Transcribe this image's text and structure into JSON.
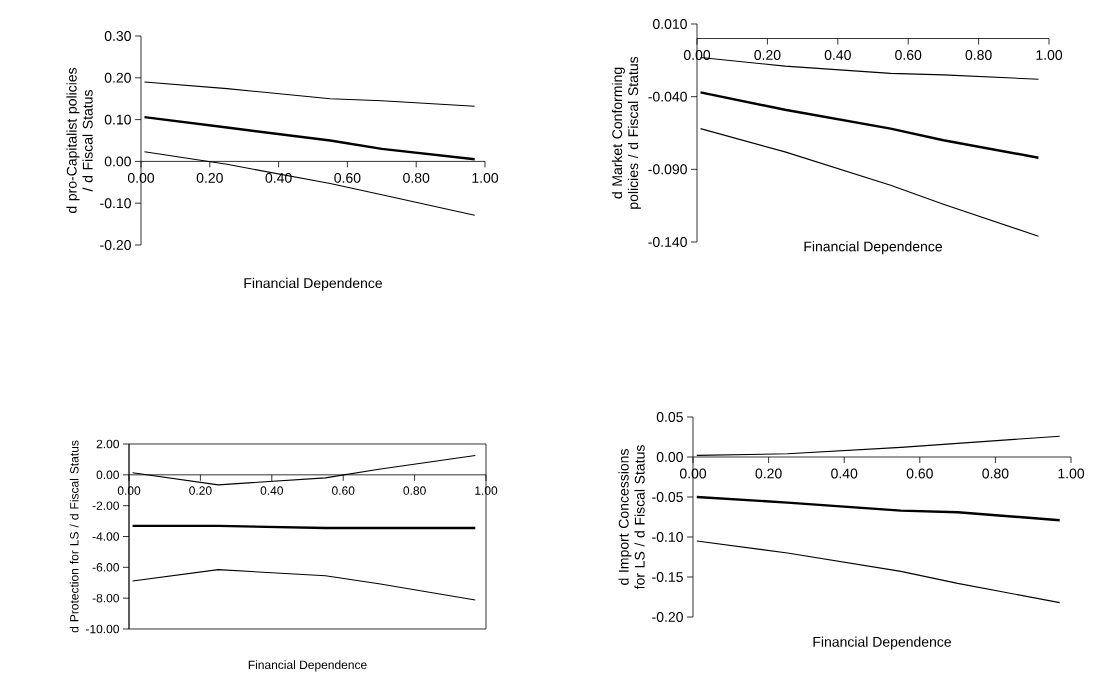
{
  "chart_data": [
    {
      "type": "line",
      "xlabel": "Financial Dependence",
      "ylabel": "d pro-Capitalist policies / d Fiscal Status",
      "x": [
        0.01,
        0.25,
        0.55,
        0.7,
        0.97
      ],
      "xlim": [
        0,
        1
      ],
      "xticks": [
        {
          "value": 0,
          "label": "0.00"
        },
        {
          "value": 0.2,
          "label": "0.20"
        },
        {
          "value": 0.4,
          "label": "0.40"
        },
        {
          "value": 0.6,
          "label": "0.60"
        },
        {
          "value": 0.8,
          "label": "0.80"
        },
        {
          "value": 1,
          "label": "1.00"
        }
      ],
      "ylim": [
        -0.2,
        0.3
      ],
      "yticks": [
        {
          "value": -0.2,
          "label": "-0.20"
        },
        {
          "value": -0.1,
          "label": "-0.10"
        },
        {
          "value": 0,
          "label": "0.00"
        },
        {
          "value": 0.1,
          "label": "0.10"
        },
        {
          "value": 0.2,
          "label": "0.20"
        },
        {
          "value": 0.3,
          "label": "0.30"
        }
      ],
      "series": [
        {
          "color": "#000000",
          "values": [
            0.19,
            0.174,
            0.15,
            0.145,
            0.132
          ]
        },
        {
          "color": "#000000",
          "values": [
            0.106,
            0.081,
            0.05,
            0.03,
            0.005
          ]
        },
        {
          "color": "#000000",
          "values": [
            0.023,
            -0.007,
            -0.053,
            -0.08,
            -0.129
          ]
        }
      ]
    },
    {
      "type": "line",
      "xlabel": "Financial Dependence",
      "ylabel": "d Market Conforming policies / d Fiscal Status",
      "x": [
        0.01,
        0.25,
        0.55,
        0.7,
        0.97
      ],
      "xlim": [
        0,
        1
      ],
      "xticks": [
        {
          "value": 0,
          "label": "0.00"
        },
        {
          "value": 0.2,
          "label": "0.20"
        },
        {
          "value": 0.4,
          "label": "0.40"
        },
        {
          "value": 0.6,
          "label": "0.60"
        },
        {
          "value": 0.8,
          "label": "0.80"
        },
        {
          "value": 1,
          "label": "1.00"
        }
      ],
      "ylim": [
        -0.14,
        0.01
      ],
      "yticks": [
        {
          "value": -0.14,
          "label": "-0.140"
        },
        {
          "value": -0.09,
          "label": "-0.090"
        },
        {
          "value": -0.04,
          "label": "-0.040"
        },
        {
          "value": 0.01,
          "label": "0.010"
        }
      ],
      "series": [
        {
          "color": "#000000",
          "values": [
            -0.013,
            -0.019,
            -0.024,
            -0.025,
            -0.028
          ]
        },
        {
          "color": "#000000",
          "values": [
            -0.037,
            -0.049,
            -0.062,
            -0.07,
            -0.082
          ]
        },
        {
          "color": "#000000",
          "values": [
            -0.062,
            -0.078,
            -0.101,
            -0.114,
            -0.136
          ]
        }
      ]
    },
    {
      "type": "line",
      "xlabel": "Financial Dependence",
      "ylabel": "d Protection for LS / d Fiscal Status",
      "x": [
        0.01,
        0.25,
        0.55,
        0.7,
        0.97
      ],
      "xlim": [
        0,
        1
      ],
      "xticks": [
        {
          "value": 0,
          "label": "0.00"
        },
        {
          "value": 0.2,
          "label": "0.20"
        },
        {
          "value": 0.4,
          "label": "0.40"
        },
        {
          "value": 0.6,
          "label": "0.60"
        },
        {
          "value": 0.8,
          "label": "0.80"
        },
        {
          "value": 1,
          "label": "1.00"
        }
      ],
      "ylim": [
        -10,
        2
      ],
      "yticks": [
        {
          "value": -10,
          "label": "-10.00"
        },
        {
          "value": -8,
          "label": "-8.00"
        },
        {
          "value": -6,
          "label": "-6.00"
        },
        {
          "value": -4,
          "label": "-4.00"
        },
        {
          "value": -2,
          "label": "-2.00"
        },
        {
          "value": 0,
          "label": "0.00"
        },
        {
          "value": 2,
          "label": "2.00"
        }
      ],
      "series": [
        {
          "color": "#000000",
          "values": [
            0.13,
            -0.65,
            -0.2,
            0.36,
            1.25
          ]
        },
        {
          "color": "#000000",
          "values": [
            -3.31,
            -3.31,
            -3.45,
            -3.45,
            -3.45
          ]
        },
        {
          "color": "#000000",
          "values": [
            -6.89,
            -6.15,
            -6.55,
            -7.07,
            -8.12
          ]
        }
      ]
    },
    {
      "type": "line",
      "xlabel": "Financial Dependence",
      "ylabel": "d Import Concessions for LS / d Fiscal Status",
      "x": [
        0.01,
        0.25,
        0.55,
        0.7,
        0.97
      ],
      "xlim": [
        0,
        1
      ],
      "xticks": [
        {
          "value": 0,
          "label": "0.00"
        },
        {
          "value": 0.2,
          "label": "0.20"
        },
        {
          "value": 0.4,
          "label": "0.40"
        },
        {
          "value": 0.6,
          "label": "0.60"
        },
        {
          "value": 0.8,
          "label": "0.80"
        },
        {
          "value": 1,
          "label": "1.00"
        }
      ],
      "ylim": [
        -0.2,
        0.05
      ],
      "yticks": [
        {
          "value": -0.2,
          "label": "-0.20"
        },
        {
          "value": -0.15,
          "label": "-0.15"
        },
        {
          "value": -0.1,
          "label": "-0.10"
        },
        {
          "value": -0.05,
          "label": "-0.05"
        },
        {
          "value": 0,
          "label": "0.00"
        },
        {
          "value": 0.05,
          "label": "0.05"
        }
      ],
      "series": [
        {
          "color": "#000000",
          "values": [
            0.002,
            0.004,
            0.012,
            0.017,
            0.026
          ]
        },
        {
          "color": "#000000",
          "values": [
            -0.05,
            -0.057,
            -0.067,
            -0.069,
            -0.079
          ]
        },
        {
          "color": "#000000",
          "values": [
            -0.105,
            -0.12,
            -0.143,
            -0.158,
            -0.182
          ]
        }
      ]
    }
  ]
}
